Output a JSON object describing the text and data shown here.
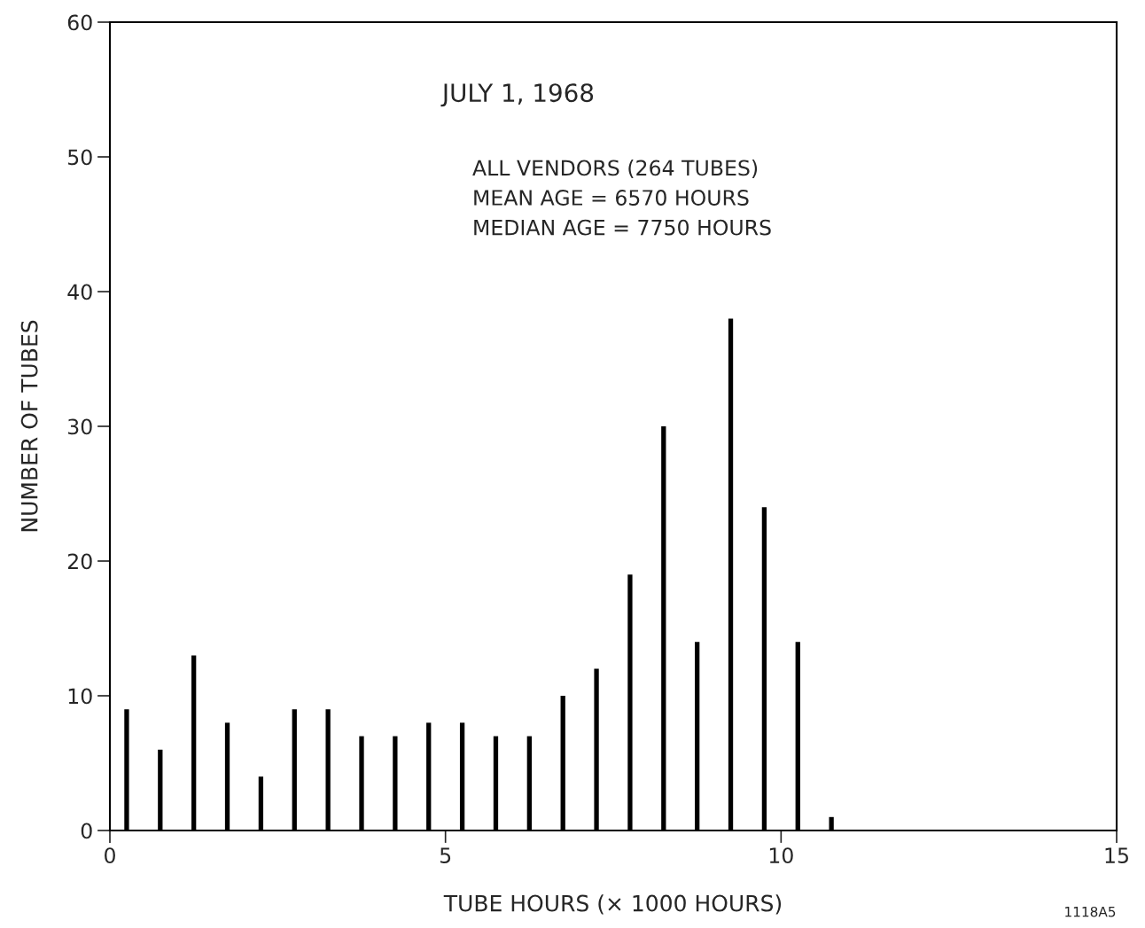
{
  "chart_data": {
    "type": "bar",
    "title": "JULY 1, 1968",
    "xlabel": "TUBE HOURS (× 1000 HOURS)",
    "ylabel": "NUMBER OF TUBES",
    "x": [
      0.25,
      0.75,
      1.25,
      1.75,
      2.25,
      2.75,
      3.25,
      3.75,
      4.25,
      4.75,
      5.25,
      5.75,
      6.25,
      6.75,
      7.25,
      7.75,
      8.25,
      8.75,
      9.25,
      9.75,
      10.25,
      10.75
    ],
    "values": [
      9,
      6,
      13,
      8,
      4,
      9,
      9,
      7,
      7,
      8,
      8,
      7,
      7,
      10,
      12,
      19,
      30,
      14,
      38,
      24,
      14,
      1
    ],
    "color": "#000000",
    "xlim": [
      0,
      15
    ],
    "xticks": [
      0,
      5,
      10,
      15
    ],
    "ylim": [
      0,
      60
    ],
    "yticks": [
      0,
      10,
      20,
      30,
      40,
      50,
      60
    ],
    "annotations": [
      "ALL VENDORS (264 TUBES)\nMEAN AGE = 6570 HOURS\nMEDIAN AGE = 7750 HOURS",
      "1118A5"
    ]
  }
}
